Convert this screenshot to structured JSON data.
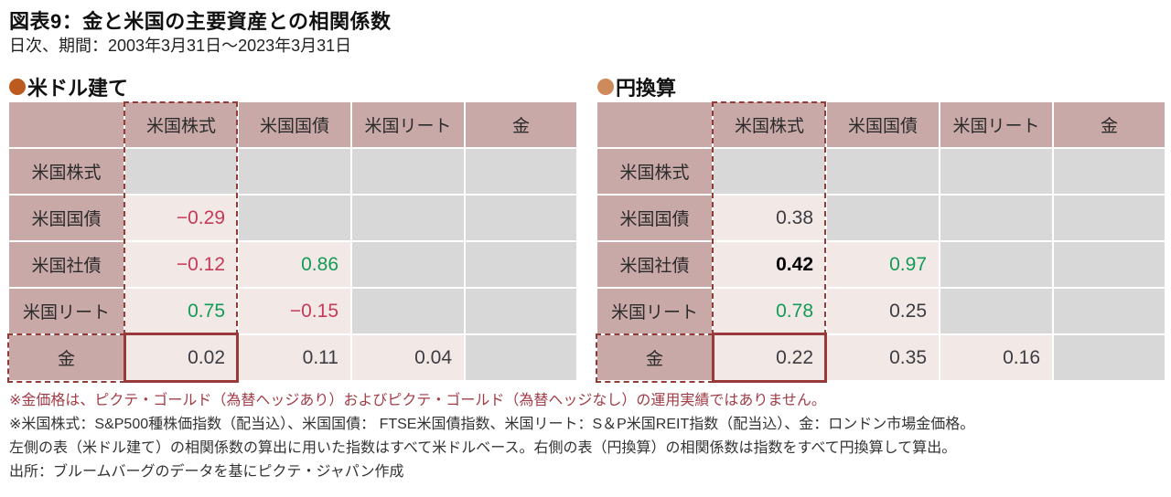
{
  "title": "図表9：金と米国の主要資産との相関係数",
  "subtitle": "日次、期間：2003年3月31日～2023年3月31日",
  "chart_data": [
    {
      "type": "table",
      "title": "米ドル建て",
      "columns": [
        "米国株式",
        "米国国債",
        "米国リート",
        "金"
      ],
      "rows": [
        "米国株式",
        "米国国債",
        "米国社債",
        "米国リート",
        "金"
      ],
      "values": [
        [
          null,
          null,
          null,
          null
        ],
        [
          -0.29,
          null,
          null,
          null
        ],
        [
          -0.12,
          0.86,
          null,
          null
        ],
        [
          0.75,
          -0.15,
          null,
          null
        ],
        [
          0.02,
          0.11,
          0.04,
          null
        ]
      ],
      "highlight": {
        "column": "米国株式",
        "row": "金",
        "intersection_value": 0.02
      }
    },
    {
      "type": "table",
      "title": "円換算",
      "columns": [
        "米国株式",
        "米国国債",
        "米国リート",
        "金"
      ],
      "rows": [
        "米国株式",
        "米国国債",
        "米国社債",
        "米国リート",
        "金"
      ],
      "values": [
        [
          null,
          null,
          null,
          null
        ],
        [
          0.38,
          null,
          null,
          null
        ],
        [
          0.42,
          0.97,
          null,
          null
        ],
        [
          0.78,
          0.25,
          null,
          null
        ],
        [
          0.22,
          0.35,
          0.16,
          null
        ]
      ],
      "highlight": {
        "column": "米国株式",
        "row": "金",
        "intersection_value": 0.22
      }
    }
  ],
  "panels": [
    {
      "id": "panel-usd",
      "bullet_color": "#bc5a1f",
      "value_colors": [
        [
          "",
          "",
          "",
          ""
        ],
        [
          "neg",
          "",
          "",
          ""
        ],
        [
          "neg",
          "pos",
          "",
          ""
        ],
        [
          "pos",
          "neg",
          "",
          ""
        ],
        [
          "blk",
          "blk",
          "blk",
          ""
        ]
      ]
    },
    {
      "id": "panel-jpy",
      "bullet_color": "#cf8a5c",
      "value_colors": [
        [
          "",
          "",
          "",
          ""
        ],
        [
          "blk",
          "",
          "",
          ""
        ],
        [
          "bold",
          "pos",
          "",
          ""
        ],
        [
          "pos",
          "blk",
          "",
          ""
        ],
        [
          "blk",
          "blk",
          "blk",
          ""
        ]
      ]
    }
  ],
  "footnotes": [
    {
      "text": "※金価格は、ピクテ・ゴールド（為替ヘッジあり）およびピクテ・ゴールド（為替ヘッジなし）の運用実績ではありません。",
      "emphasis": true
    },
    {
      "text": "※米国株式：S&P500種株価指数（配当込）、米国国債： FTSE米国債指数、米国リート：S＆P米国REIT指数（配当込）、金：ロンドン市場金価格。",
      "emphasis": false
    },
    {
      "text": "左側の表（米ドル建て）の相関係数の算出に用いた指数はすべて米ドルベース。右側の表（円換算）の相関係数は指数をすべて円換算して算出。",
      "emphasis": false
    },
    {
      "text": "出所：ブルームバーグのデータを基にピクテ・ジャパン作成",
      "emphasis": false
    }
  ],
  "colors": {
    "header_bg": "#c9a9a7",
    "value_bg": "#f2e8e6",
    "empty_bg": "#d8d8d8",
    "negative": "#c53a57",
    "positive": "#129b57",
    "neutral": "#3c3c42",
    "highlight_border": "#943b38",
    "footnote_emphasis": "#a03c46",
    "bullet_usd": "#bc5a1f",
    "bullet_jpy": "#cf8a5c"
  }
}
